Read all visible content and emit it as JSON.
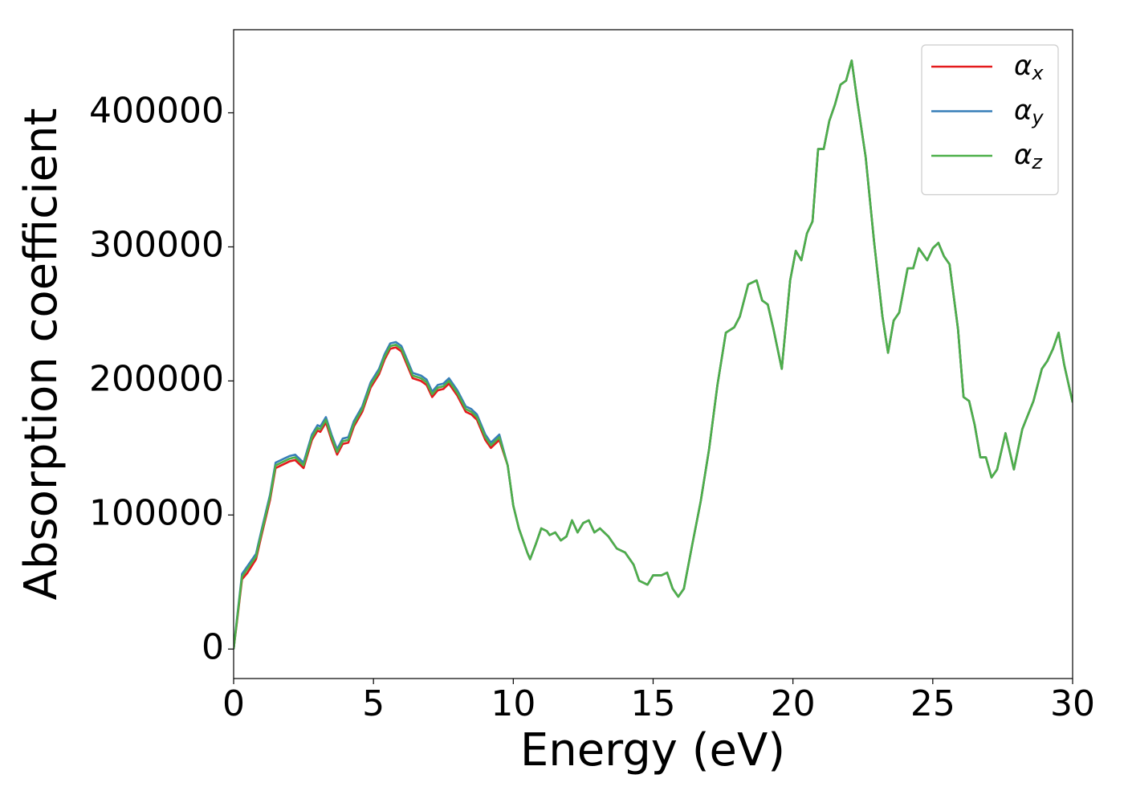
{
  "chart_data": {
    "type": "line",
    "x_label": "Energy (eV)",
    "y_label": "Absorption coefficient",
    "xlim": [
      0,
      30
    ],
    "xticks": [
      0,
      5,
      10,
      15,
      20,
      25,
      30
    ],
    "ylim": [
      -22000,
      462000
    ],
    "yticks": [
      0,
      100000,
      200000,
      300000,
      400000
    ],
    "legend": "upper right",
    "x": [
      0,
      0.1,
      0.3,
      0.5,
      0.8,
      1.0,
      1.3,
      1.5,
      1.8,
      2.0,
      2.2,
      2.5,
      2.8,
      3.0,
      3.1,
      3.3,
      3.5,
      3.7,
      3.9,
      4.1,
      4.3,
      4.6,
      4.9,
      5.2,
      5.4,
      5.6,
      5.8,
      6.0,
      6.2,
      6.4,
      6.7,
      6.9,
      7.1,
      7.3,
      7.5,
      7.7,
      8.0,
      8.3,
      8.5,
      8.7,
      9.0,
      9.2,
      9.5,
      9.8,
      10.0,
      10.2,
      10.5,
      10.6,
      10.8,
      11.0,
      11.2,
      11.3,
      11.5,
      11.7,
      11.9,
      12.1,
      12.3,
      12.5,
      12.7,
      12.9,
      13.1,
      13.4,
      13.7,
      14.0,
      14.3,
      14.5,
      14.8,
      15.0,
      15.3,
      15.5,
      15.7,
      15.9,
      16.1,
      16.4,
      16.7,
      17.0,
      17.3,
      17.6,
      17.9,
      18.1,
      18.4,
      18.7,
      18.9,
      19.1,
      19.3,
      19.6,
      19.9,
      20.1,
      20.3,
      20.5,
      20.7,
      20.9,
      21.1,
      21.3,
      21.5,
      21.7,
      21.9,
      22.1,
      22.3,
      22.6,
      22.9,
      23.2,
      23.4,
      23.6,
      23.8,
      24.1,
      24.3,
      24.5,
      24.8,
      25.0,
      25.2,
      25.4,
      25.6,
      25.9,
      26.1,
      26.3,
      26.5,
      26.7,
      26.9,
      27.1,
      27.3,
      27.6,
      27.9,
      28.2,
      28.6,
      28.9,
      29.1,
      29.3,
      29.5,
      29.7,
      30.0
    ],
    "series": [
      {
        "name": "αx",
        "color": "#e41a1c",
        "values": [
          0,
          17000,
          52000,
          57000,
          67000,
          85000,
          111000,
          135000,
          138000,
          140000,
          141000,
          135000,
          156000,
          163000,
          162000,
          169000,
          156000,
          145000,
          153000,
          154000,
          166000,
          177000,
          195000,
          205000,
          216000,
          224000,
          225000,
          222000,
          212000,
          202000,
          200000,
          197000,
          188000,
          193000,
          194000,
          198000,
          189000,
          177000,
          175000,
          171000,
          156000,
          150000,
          156000,
          137000,
          107000,
          90000,
          72000,
          67000,
          78000,
          90000,
          88000,
          85000,
          87000,
          81000,
          84000,
          96000,
          87000,
          94000,
          96000,
          87000,
          90000,
          84000,
          75000,
          72000,
          63000,
          51000,
          48000,
          55000,
          55000,
          57000,
          45000,
          39000,
          45000,
          78000,
          110000,
          149000,
          197000,
          236000,
          240000,
          248000,
          272000,
          275000,
          260000,
          257000,
          239000,
          209000,
          275000,
          297000,
          290000,
          310000,
          319000,
          373000,
          373000,
          394000,
          406000,
          421000,
          424000,
          439000,
          409000,
          367000,
          304000,
          248000,
          221000,
          245000,
          251000,
          284000,
          284000,
          299000,
          290000,
          299000,
          303000,
          293000,
          287000,
          239000,
          188000,
          185000,
          167000,
          143000,
          143000,
          128000,
          134000,
          161000,
          134000,
          164000,
          185000,
          209000,
          215000,
          224000,
          236000,
          212000,
          184000
        ]
      },
      {
        "name": "αy",
        "color": "#377eb8",
        "values": [
          0,
          19000,
          56000,
          62000,
          71000,
          89000,
          115000,
          139000,
          142000,
          144000,
          145000,
          139000,
          160000,
          167000,
          166000,
          173000,
          160000,
          149000,
          157000,
          158000,
          170000,
          181000,
          199000,
          209000,
          220000,
          228000,
          229000,
          226000,
          216000,
          206000,
          204000,
          201000,
          192000,
          197000,
          198000,
          202000,
          193000,
          181000,
          179000,
          175000,
          160000,
          154000,
          160000,
          137000,
          107000,
          90000,
          72000,
          67000,
          78000,
          90000,
          88000,
          85000,
          87000,
          81000,
          84000,
          96000,
          87000,
          94000,
          96000,
          87000,
          90000,
          84000,
          75000,
          72000,
          63000,
          51000,
          48000,
          55000,
          55000,
          57000,
          45000,
          39000,
          45000,
          78000,
          110000,
          149000,
          197000,
          236000,
          240000,
          248000,
          272000,
          275000,
          260000,
          257000,
          239000,
          209000,
          275000,
          297000,
          290000,
          310000,
          319000,
          373000,
          373000,
          394000,
          406000,
          421000,
          424000,
          439000,
          409000,
          367000,
          304000,
          248000,
          221000,
          245000,
          251000,
          284000,
          284000,
          299000,
          290000,
          299000,
          303000,
          293000,
          287000,
          239000,
          188000,
          185000,
          167000,
          143000,
          143000,
          128000,
          134000,
          161000,
          134000,
          164000,
          185000,
          209000,
          215000,
          224000,
          236000,
          212000,
          184000
        ]
      },
      {
        "name": "αz",
        "color": "#4daf4a",
        "values": [
          0,
          18000,
          54000,
          60000,
          69000,
          87000,
          113000,
          137000,
          140000,
          142000,
          143000,
          137000,
          158000,
          165000,
          164000,
          171000,
          158000,
          147000,
          155000,
          156000,
          168000,
          179000,
          197000,
          207000,
          218000,
          226000,
          227000,
          224000,
          214000,
          204000,
          202000,
          199000,
          190000,
          195000,
          196000,
          200000,
          191000,
          179000,
          177000,
          173000,
          158000,
          152000,
          158000,
          137000,
          107000,
          90000,
          72000,
          67000,
          78000,
          90000,
          88000,
          85000,
          87000,
          81000,
          84000,
          96000,
          87000,
          94000,
          96000,
          87000,
          90000,
          84000,
          75000,
          72000,
          63000,
          51000,
          48000,
          55000,
          55000,
          57000,
          45000,
          39000,
          45000,
          78000,
          110000,
          149000,
          197000,
          236000,
          240000,
          248000,
          272000,
          275000,
          260000,
          257000,
          239000,
          209000,
          275000,
          297000,
          290000,
          310000,
          319000,
          373000,
          373000,
          394000,
          406000,
          421000,
          424000,
          439000,
          409000,
          367000,
          304000,
          248000,
          221000,
          245000,
          251000,
          284000,
          284000,
          299000,
          290000,
          299000,
          303000,
          293000,
          287000,
          239000,
          188000,
          185000,
          167000,
          143000,
          143000,
          128000,
          134000,
          161000,
          134000,
          164000,
          185000,
          209000,
          215000,
          224000,
          236000,
          212000,
          184000
        ]
      }
    ]
  }
}
